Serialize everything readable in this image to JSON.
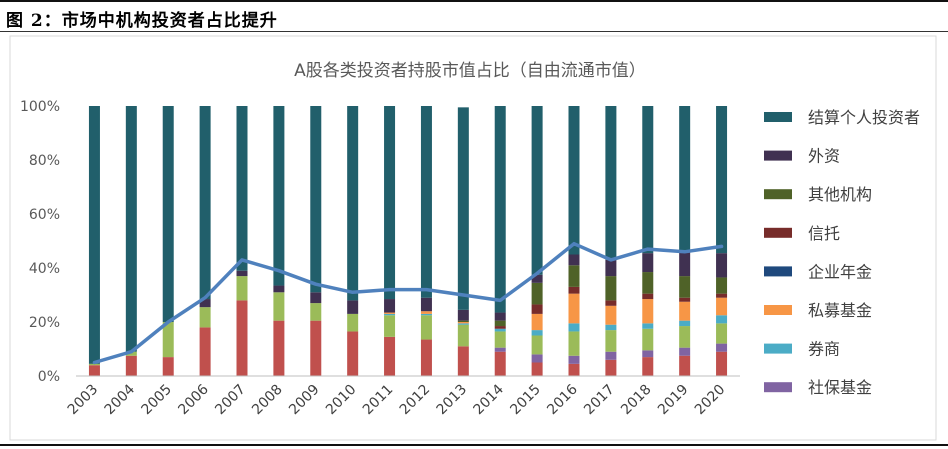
{
  "caption": "图 2：市场中机构投资者占比提升",
  "chart_data": {
    "type": "bar",
    "title": "A股各类投资者持股市值占比（自由流通市值）",
    "xlabel": "",
    "ylabel": "",
    "ylim": [
      0,
      100
    ],
    "yticks": [
      "0%",
      "20%",
      "40%",
      "60%",
      "80%",
      "100%"
    ],
    "categories": [
      "2003",
      "2004",
      "2005",
      "2006",
      "2007",
      "2008",
      "2009",
      "2010",
      "2011",
      "2012",
      "2013",
      "2014",
      "2015",
      "2016",
      "2017",
      "2018",
      "2019",
      "2020"
    ],
    "stacked": true,
    "series": [
      {
        "name": "",
        "color": "#C0504D",
        "values": [
          4.0,
          7.5,
          7.0,
          18.0,
          28.0,
          20.5,
          20.5,
          16.5,
          14.5,
          13.5,
          11.0,
          9.0,
          5.0,
          4.5,
          6.0,
          7.0,
          7.5,
          9.0
        ]
      },
      {
        "name": "社保基金",
        "color": "#8064A2",
        "values": [
          0,
          0,
          0,
          0,
          0,
          0,
          0,
          0,
          0,
          0,
          0,
          1.5,
          3.0,
          3.0,
          3.0,
          2.5,
          3.0,
          3.0
        ]
      },
      {
        "name": "",
        "color": "#9BBB59",
        "values": [
          0.5,
          1.5,
          13.0,
          7.5,
          9.0,
          10.5,
          6.5,
          6.5,
          8.0,
          9.0,
          8.0,
          6.0,
          7.0,
          9.0,
          8.0,
          8.0,
          8.0,
          7.5
        ]
      },
      {
        "name": "券商",
        "color": "#4BACC6",
        "values": [
          0,
          0,
          0,
          0,
          0,
          0,
          0,
          0,
          0.5,
          0.5,
          0.5,
          1.0,
          2.0,
          3.0,
          2.0,
          2.0,
          2.0,
          3.0
        ]
      },
      {
        "name": "私募基金",
        "color": "#F79646",
        "values": [
          0,
          0,
          0,
          0,
          0,
          0,
          0,
          0,
          0.5,
          1.0,
          0.5,
          0,
          6.0,
          11.0,
          7.0,
          9.0,
          7.0,
          6.5
        ]
      },
      {
        "name": "企业年金",
        "color": "#1F497D",
        "values": [
          0,
          0,
          0,
          0,
          0,
          0,
          0,
          0,
          0,
          0,
          0,
          0,
          0,
          0,
          0,
          0,
          0,
          0
        ]
      },
      {
        "name": "信托",
        "color": "#772C2A",
        "values": [
          0,
          0,
          0,
          0,
          0,
          0,
          0,
          0,
          0,
          0,
          0,
          1.0,
          3.5,
          2.5,
          2.0,
          2.0,
          1.5,
          1.5
        ]
      },
      {
        "name": "其他机构",
        "color": "#4F6228",
        "values": [
          0,
          0,
          0,
          0,
          0,
          0,
          0,
          0,
          0,
          0,
          0.5,
          2.0,
          8.0,
          8.0,
          9.0,
          8.0,
          8.0,
          6.0
        ]
      },
      {
        "name": "外资",
        "color": "#403151",
        "values": [
          0,
          0,
          0,
          3.0,
          2.0,
          2.5,
          4.0,
          5.0,
          5.0,
          5.0,
          4.0,
          3.0,
          3.0,
          4.0,
          6.0,
          7.0,
          9.5,
          9.0
        ]
      },
      {
        "name": "结算个人投资者",
        "color": "#215F6B",
        "values": [
          95.5,
          91.0,
          80.0,
          71.5,
          61.0,
          66.5,
          69.0,
          72.0,
          71.5,
          71.0,
          75.0,
          76.5,
          62.5,
          55.0,
          57.0,
          54.5,
          53.5,
          54.5
        ]
      }
    ],
    "line": {
      "color": "#4F81BD",
      "values": [
        5,
        9,
        20,
        29,
        43,
        39,
        34,
        31,
        32,
        32,
        30,
        28,
        38,
        49,
        43,
        47,
        46,
        48
      ]
    },
    "legend": {
      "placement": "right",
      "entries": [
        "结算个人投资者",
        "外资",
        "其他机构",
        "信托",
        "企业年金",
        "私募基金",
        "券商",
        "社保基金"
      ]
    },
    "grid": false
  }
}
